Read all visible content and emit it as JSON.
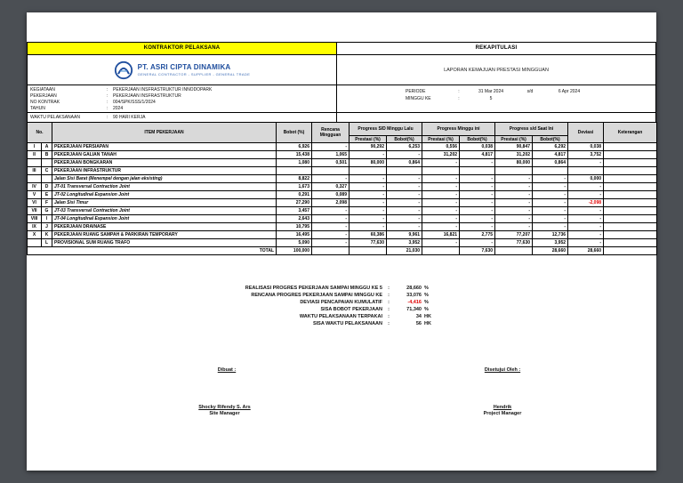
{
  "header": {
    "kontraktor": "KONTRAKTOR PELAKSANA",
    "rekapitulasi": "REKAPITULASI",
    "company_name": "PT. ASRI CIPTA DINAMIKA",
    "company_tagline": "GENERAL CONTRACTOR - SUPPLIER - GENERAL TRADE",
    "report_title": "LAPORAN KEMAJUAN PRESTASI MINGGUAN"
  },
  "info": {
    "lines": [
      {
        "label": "KEGIATAAN",
        "value": "PEKERJAAN INSFRASTRUKTUR INNODOPARK"
      },
      {
        "label": "PEKERJAAN",
        "value": "PEKERJAAN INSFRASTRUKTUR"
      },
      {
        "label": "NO KONTRAK",
        "value": "004/SPK/SSS/1/2024"
      },
      {
        "label": "TAHUN",
        "value": "2024"
      }
    ],
    "waktu_label": "WAKTU PELAKSANAAN",
    "waktu_value": "90 HARI KERJA"
  },
  "periode": {
    "label": "PERIODE",
    "start": "31 Mar 2024",
    "sd": "s/d",
    "end": "6 Apr 2024",
    "minggu_label": "MINGGU KE",
    "minggu_value": "5"
  },
  "table": {
    "headers": {
      "no": "No.",
      "item": "ITEM PEKERJAAN",
      "bobot": "Bobot (%)",
      "rencana": "Rencana Mingguan",
      "lalu": "Progress S/D Minggu Lalu",
      "ini": "Progress Minggu ini",
      "saat": "Progress s/d Saat Ini",
      "prestasi": "Prestasi (%)",
      "bobot_pct": "Bobot(%)",
      "deviasi": "Deviasi",
      "keterangan": "Keterangan"
    },
    "rows": [
      {
        "no": "I",
        "letter": "A",
        "item": "PEKERJAAN PERSIAPAN",
        "style": "caps",
        "bobot": "6,926",
        "rencana": "-",
        "lalu_prestasi": "90,292",
        "lalu_bobot": "6,253",
        "ini_prestasi": "0,556",
        "ini_bobot": "0,038",
        "saat_prestasi": "90,847",
        "saat_bobot": "6,292",
        "deviasi": "0,038",
        "deviasi_red": false,
        "keterangan": ""
      },
      {
        "no": "II",
        "letter": "B",
        "item": "PEKERJAAN GALIAN TANAH",
        "style": "caps",
        "bobot": "15,438",
        "rencana": "1,065",
        "lalu_prestasi": "-",
        "lalu_bobot": "-",
        "ini_prestasi": "31,202",
        "ini_bobot": "4,817",
        "saat_prestasi": "31,202",
        "saat_bobot": "4,817",
        "deviasi": "3,752",
        "deviasi_red": false,
        "keterangan": ""
      },
      {
        "no": "",
        "letter": "",
        "item": "PEKERJAAN BONGKARAN",
        "style": "caps",
        "bobot": "1,080",
        "rencana": "0,501",
        "lalu_prestasi": "80,000",
        "lalu_bobot": "0,864",
        "ini_prestasi": "-",
        "ini_bobot": "-",
        "saat_prestasi": "80,000",
        "saat_bobot": "0,864",
        "deviasi": "-",
        "deviasi_red": false,
        "keterangan": ""
      },
      {
        "no": "III",
        "letter": "C",
        "item": "PEKERJAAN INFRASTRUKTUR",
        "style": "caps",
        "bobot": "",
        "rencana": "",
        "lalu_prestasi": "",
        "lalu_bobot": "",
        "ini_prestasi": "",
        "ini_bobot": "",
        "saat_prestasi": "",
        "saat_bobot": "",
        "deviasi": "",
        "deviasi_red": false,
        "keterangan": ""
      },
      {
        "no": "",
        "letter": "",
        "item": "Jalan Sisi Barat (Menempel dengan jalan eksisting)",
        "style": "italic",
        "bobot": "8,822",
        "rencana": "-",
        "lalu_prestasi": "-",
        "lalu_bobot": "-",
        "ini_prestasi": "-",
        "ini_bobot": "-",
        "saat_prestasi": "-",
        "saat_bobot": "-",
        "deviasi": "0,000",
        "deviasi_red": false,
        "keterangan": ""
      },
      {
        "no": "IV",
        "letter": "D",
        "item": "JT-01 Transversal Contraction Joint",
        "style": "italic",
        "bobot": "1,673",
        "rencana": "0,327",
        "lalu_prestasi": "-",
        "lalu_bobot": "-",
        "ini_prestasi": "-",
        "ini_bobot": "-",
        "saat_prestasi": "-",
        "saat_bobot": "-",
        "deviasi": "-",
        "deviasi_red": false,
        "keterangan": ""
      },
      {
        "no": "V",
        "letter": "E",
        "item": "JT-02 Longitudinal Expansion Joint",
        "style": "italic",
        "bobot": "0,291",
        "rencana": "0,089",
        "lalu_prestasi": "-",
        "lalu_bobot": "-",
        "ini_prestasi": "-",
        "ini_bobot": "-",
        "saat_prestasi": "-",
        "saat_bobot": "-",
        "deviasi": "-",
        "deviasi_red": false,
        "keterangan": ""
      },
      {
        "no": "VI",
        "letter": "F",
        "item": "Jalan Sisi Timur",
        "style": "italic",
        "bobot": "27,290",
        "rencana": "2,098",
        "lalu_prestasi": "-",
        "lalu_bobot": "-",
        "ini_prestasi": "-",
        "ini_bobot": "-",
        "saat_prestasi": "-",
        "saat_bobot": "-",
        "deviasi": "-2,098",
        "deviasi_red": true,
        "keterangan": ""
      },
      {
        "no": "VII",
        "letter": "G",
        "item": "JT-03 Transversal Contraction Joint",
        "style": "italic",
        "bobot": "3,457",
        "rencana": "-",
        "lalu_prestasi": "-",
        "lalu_bobot": "-",
        "ini_prestasi": "-",
        "ini_bobot": "-",
        "saat_prestasi": "-",
        "saat_bobot": "-",
        "deviasi": "-",
        "deviasi_red": false,
        "keterangan": ""
      },
      {
        "no": "VIII",
        "letter": "I",
        "item": "JT-04 Longitudinal Expansion Joint",
        "style": "italic",
        "bobot": "2,643",
        "rencana": "-",
        "lalu_prestasi": "-",
        "lalu_bobot": "-",
        "ini_prestasi": "-",
        "ini_bobot": "-",
        "saat_prestasi": "-",
        "saat_bobot": "-",
        "deviasi": "-",
        "deviasi_red": false,
        "keterangan": ""
      },
      {
        "no": "IX",
        "letter": "J",
        "item": "PEKERJAAN DRAINASE",
        "style": "caps",
        "bobot": "10,795",
        "rencana": "-",
        "lalu_prestasi": "-",
        "lalu_bobot": "-",
        "ini_prestasi": "-",
        "ini_bobot": "-",
        "saat_prestasi": "-",
        "saat_bobot": "-",
        "deviasi": "-",
        "deviasi_red": false,
        "keterangan": ""
      },
      {
        "no": "X",
        "letter": "K",
        "item": "PEKERJAAN RUANG SAMPAH & PARKIRAN TEMPORARY",
        "style": "caps",
        "bobot": "16,495",
        "rencana": "-",
        "lalu_prestasi": "60,386",
        "lalu_bobot": "9,961",
        "ini_prestasi": "16,821",
        "ini_bobot": "2,775",
        "saat_prestasi": "77,207",
        "saat_bobot": "12,736",
        "deviasi": "-",
        "deviasi_red": false,
        "keterangan": ""
      },
      {
        "no": "",
        "letter": "L",
        "item": "PROVISIONAL SUM RUANG TRAFO",
        "style": "caps",
        "bobot": "5,090",
        "rencana": "-",
        "lalu_prestasi": "77,630",
        "lalu_bobot": "3,952",
        "ini_prestasi": "-",
        "ini_bobot": "-",
        "saat_prestasi": "77,630",
        "saat_bobot": "3,952",
        "deviasi": "-",
        "deviasi_red": false,
        "keterangan": ""
      }
    ],
    "total": {
      "label": "TOTAL",
      "bobot": "100,000",
      "lalu_bobot": "21,030",
      "ini_bobot": "7,630",
      "saat_bobot": "28,660",
      "deviasi": "28,660"
    }
  },
  "summary": [
    {
      "label": "REALISASI PROGRES PEKERJAAN SAMPAI MINGGU KE 5",
      "value": "28,660",
      "unit": "%",
      "red": false
    },
    {
      "label": "RENCANA PROGRES PEKERJAAN SAMPAI MINGGU KE",
      "value": "33,076",
      "unit": "%",
      "red": false
    },
    {
      "label": "DEVIASI PENCAPAIAN KUMULATIF",
      "value": "-4,416",
      "unit": "%",
      "red": true
    },
    {
      "label": "SISA BOBOT PEKERJAAN",
      "value": "71,340",
      "unit": "%",
      "red": false
    },
    {
      "label": "WAKTU PELAKSANAAN TERPAKAI",
      "value": "34",
      "unit": "HK",
      "red": false
    },
    {
      "label": "SISA WAKTU PELAKSANAAN",
      "value": "56",
      "unit": "HK",
      "red": false
    }
  ],
  "signatures": {
    "left_title": "Dibuat :",
    "right_title": "Disetujui Oleh :",
    "left_name": "Shocky Rifendy S. Ars",
    "left_role": "Site Manager",
    "right_name": "Hendrik",
    "right_role": "Project Manager"
  },
  "colors": {
    "banner_yellow": "#ffff00",
    "brand_blue": "#1f4e9e",
    "negative_red": "#e00000",
    "header_gray": "#d9d9d9"
  }
}
